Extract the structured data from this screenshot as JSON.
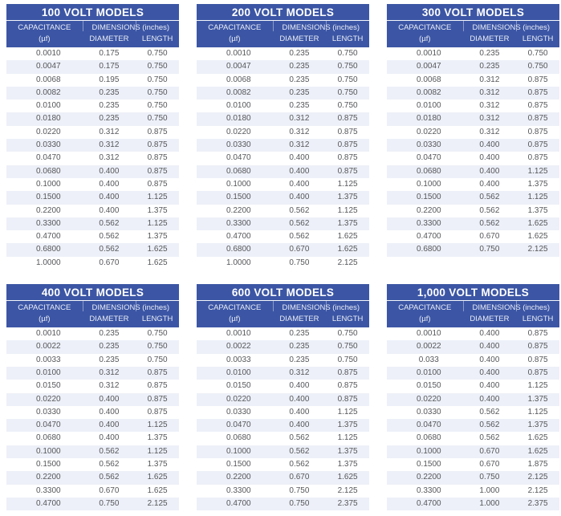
{
  "colors": {
    "header_bg": "#3c56a5",
    "header_text": "#ffffff",
    "subheader_text": "#e9ecf6",
    "row_alt_bg": "#edf0f8",
    "data_text": "#56575b",
    "page_bg": "#ffffff"
  },
  "column_headers": {
    "capacitance": "CAPACITANCE",
    "capacitance_unit": "(µf)",
    "dimensions": "DIMENSIONS (inches)",
    "diameter": "DIAMETER",
    "length": "LENGTH"
  },
  "tables": [
    {
      "title": "100 VOLT MODELS",
      "rows": [
        [
          "0.0010",
          "0.175",
          "0.750"
        ],
        [
          "0.0047",
          "0.175",
          "0.750"
        ],
        [
          "0.0068",
          "0.195",
          "0.750"
        ],
        [
          "0.0082",
          "0.235",
          "0.750"
        ],
        [
          "0.0100",
          "0.235",
          "0.750"
        ],
        [
          "0.0180",
          "0.235",
          "0.750"
        ],
        [
          "0.0220",
          "0.312",
          "0.875"
        ],
        [
          "0.0330",
          "0.312",
          "0.875"
        ],
        [
          "0.0470",
          "0.312",
          "0.875"
        ],
        [
          "0.0680",
          "0.400",
          "0.875"
        ],
        [
          "0.1000",
          "0.400",
          "0.875"
        ],
        [
          "0.1500",
          "0.400",
          "1.125"
        ],
        [
          "0.2200",
          "0.400",
          "1.375"
        ],
        [
          "0.3300",
          "0.562",
          "1.125"
        ],
        [
          "0.4700",
          "0.562",
          "1.375"
        ],
        [
          "0.6800",
          "0.562",
          "1.625"
        ],
        [
          "1.0000",
          "0.670",
          "1.625"
        ]
      ]
    },
    {
      "title": "200 VOLT MODELS",
      "rows": [
        [
          "0.0010",
          "0.235",
          "0.750"
        ],
        [
          "0.0047",
          "0.235",
          "0.750"
        ],
        [
          "0.0068",
          "0.235",
          "0.750"
        ],
        [
          "0.0082",
          "0.235",
          "0.750"
        ],
        [
          "0.0100",
          "0.235",
          "0.750"
        ],
        [
          "0.0180",
          "0.312",
          "0.875"
        ],
        [
          "0.0220",
          "0.312",
          "0.875"
        ],
        [
          "0.0330",
          "0.312",
          "0.875"
        ],
        [
          "0.0470",
          "0.400",
          "0.875"
        ],
        [
          "0.0680",
          "0.400",
          "0.875"
        ],
        [
          "0.1000",
          "0.400",
          "1.125"
        ],
        [
          "0.1500",
          "0.400",
          "1.375"
        ],
        [
          "0.2200",
          "0.562",
          "1.125"
        ],
        [
          "0.3300",
          "0.562",
          "1.375"
        ],
        [
          "0.4700",
          "0.562",
          "1.625"
        ],
        [
          "0.6800",
          "0.670",
          "1.625"
        ],
        [
          "1.0000",
          "0.750",
          "2.125"
        ]
      ]
    },
    {
      "title": "300 VOLT MODELS",
      "rows": [
        [
          "0.0010",
          "0.235",
          "0.750"
        ],
        [
          "0.0047",
          "0.235",
          "0.750"
        ],
        [
          "0.0068",
          "0.312",
          "0.875"
        ],
        [
          "0.0082",
          "0.312",
          "0.875"
        ],
        [
          "0.0100",
          "0.312",
          "0.875"
        ],
        [
          "0.0180",
          "0.312",
          "0.875"
        ],
        [
          "0.0220",
          "0.312",
          "0.875"
        ],
        [
          "0.0330",
          "0.400",
          "0.875"
        ],
        [
          "0.0470",
          "0.400",
          "0.875"
        ],
        [
          "0.0680",
          "0.400",
          "1.125"
        ],
        [
          "0.1000",
          "0.400",
          "1.375"
        ],
        [
          "0.1500",
          "0.562",
          "1.125"
        ],
        [
          "0.2200",
          "0.562",
          "1.375"
        ],
        [
          "0.3300",
          "0.562",
          "1.625"
        ],
        [
          "0.4700",
          "0.670",
          "1.625"
        ],
        [
          "0.6800",
          "0.750",
          "2.125"
        ]
      ]
    },
    {
      "title": "400 VOLT MODELS",
      "rows": [
        [
          "0.0010",
          "0.235",
          "0.750"
        ],
        [
          "0.0022",
          "0.235",
          "0.750"
        ],
        [
          "0.0033",
          "0.235",
          "0.750"
        ],
        [
          "0.0100",
          "0.312",
          "0.875"
        ],
        [
          "0.0150",
          "0.312",
          "0.875"
        ],
        [
          "0.0220",
          "0.400",
          "0.875"
        ],
        [
          "0.0330",
          "0.400",
          "0.875"
        ],
        [
          "0.0470",
          "0.400",
          "1.125"
        ],
        [
          "0.0680",
          "0.400",
          "1.375"
        ],
        [
          "0.1000",
          "0.562",
          "1.125"
        ],
        [
          "0.1500",
          "0.562",
          "1.375"
        ],
        [
          "0.2200",
          "0.562",
          "1.625"
        ],
        [
          "0.3300",
          "0.670",
          "1.625"
        ],
        [
          "0.4700",
          "0.750",
          "2.125"
        ]
      ]
    },
    {
      "title": "600 VOLT MODELS",
      "rows": [
        [
          "0.0010",
          "0.235",
          "0.750"
        ],
        [
          "0.0022",
          "0.235",
          "0.750"
        ],
        [
          "0.0033",
          "0.235",
          "0.750"
        ],
        [
          "0.0100",
          "0.312",
          "0.875"
        ],
        [
          "0.0150",
          "0.400",
          "0.875"
        ],
        [
          "0.0220",
          "0.400",
          "0.875"
        ],
        [
          "0.0330",
          "0.400",
          "1.125"
        ],
        [
          "0.0470",
          "0.400",
          "1.375"
        ],
        [
          "0.0680",
          "0.562",
          "1.125"
        ],
        [
          "0.1000",
          "0.562",
          "1.375"
        ],
        [
          "0.1500",
          "0.562",
          "1.375"
        ],
        [
          "0.2200",
          "0.670",
          "1.625"
        ],
        [
          "0.3300",
          "0.750",
          "2.125"
        ],
        [
          "0.4700",
          "0.750",
          "2.375"
        ]
      ]
    },
    {
      "title": "1,000 VOLT MODELS",
      "rows": [
        [
          "0.0010",
          "0.400",
          "0.875"
        ],
        [
          "0.0022",
          "0.400",
          "0.875"
        ],
        [
          "0.033",
          "0.400",
          "0.875"
        ],
        [
          "0.0100",
          "0.400",
          "0.875"
        ],
        [
          "0.0150",
          "0.400",
          "1.125"
        ],
        [
          "0.0220",
          "0.400",
          "1.375"
        ],
        [
          "0.0330",
          "0.562",
          "1.125"
        ],
        [
          "0.0470",
          "0.562",
          "1.375"
        ],
        [
          "0.0680",
          "0.562",
          "1.625"
        ],
        [
          "0.1000",
          "0.670",
          "1.625"
        ],
        [
          "0.1500",
          "0.670",
          "1.875"
        ],
        [
          "0.2200",
          "0.750",
          "2.125"
        ],
        [
          "0.3300",
          "1.000",
          "2.125"
        ],
        [
          "0.4700",
          "1.000",
          "2.375"
        ]
      ]
    }
  ]
}
